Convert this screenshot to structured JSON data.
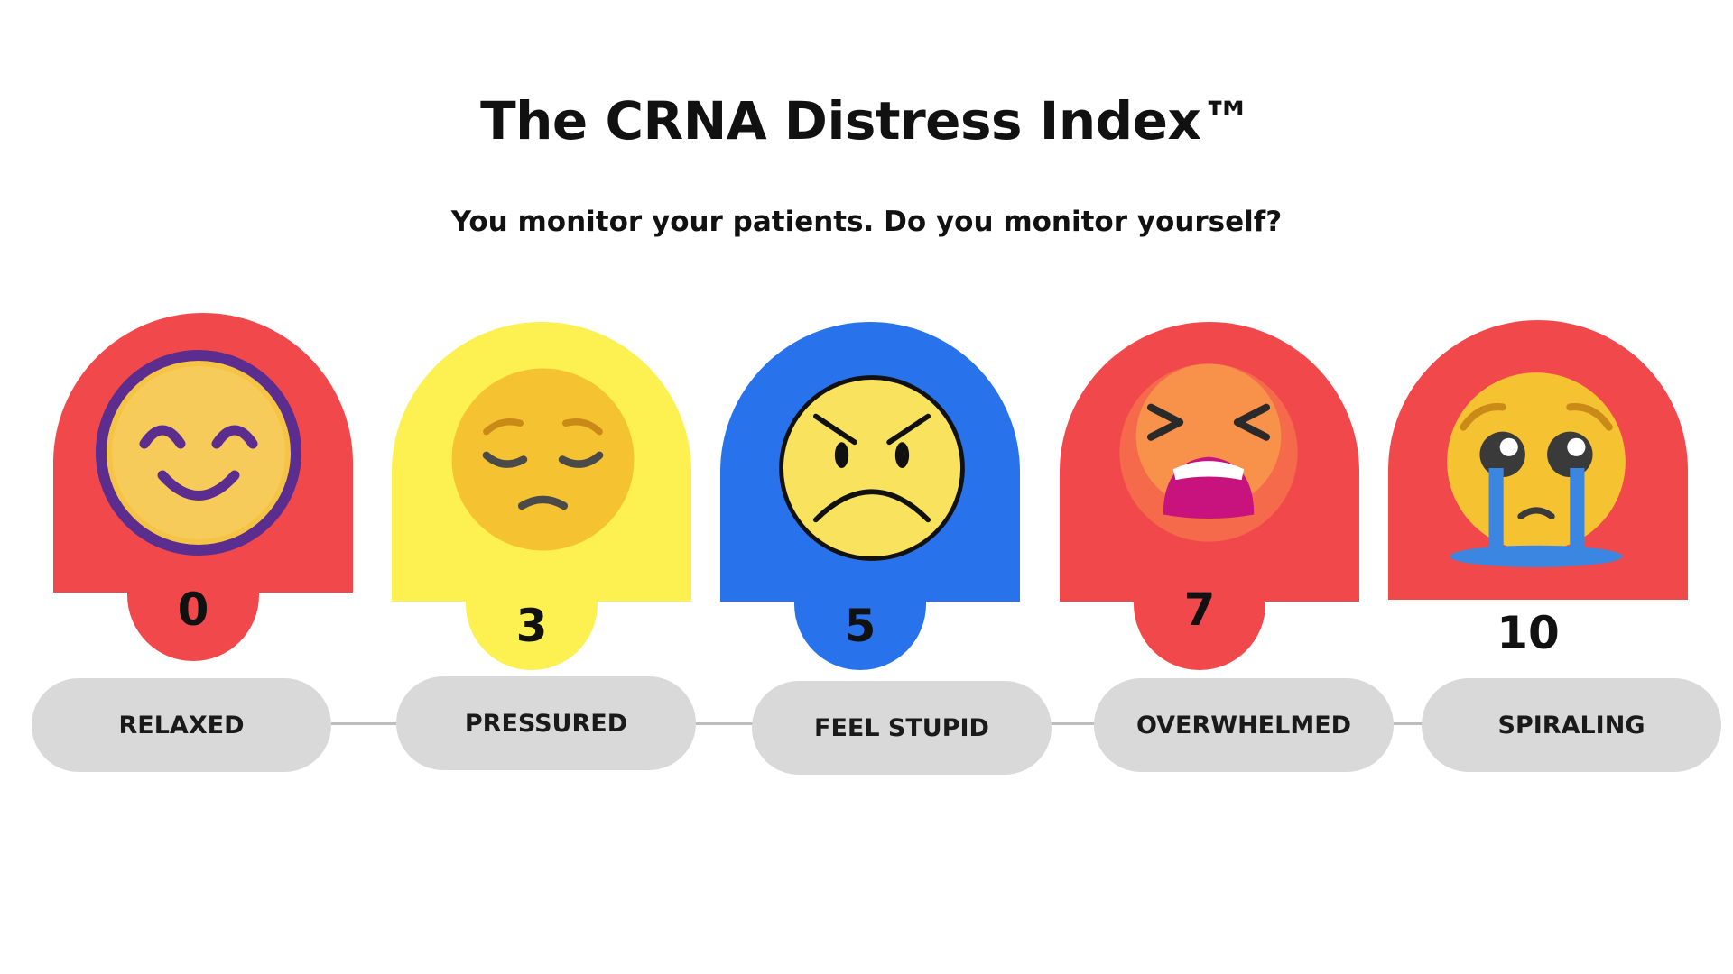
{
  "title": "The CRNA Distress Index™",
  "subtitle": "You monitor your patients. Do you monitor yourself?",
  "levels": [
    {
      "score": "0",
      "label": "RELAXED",
      "color": "#f1494b",
      "icon": "smiling-face-icon"
    },
    {
      "score": "3",
      "label": "PRESSURED",
      "color": "#fdf051",
      "icon": "pensive-face-icon"
    },
    {
      "score": "5",
      "label": "FEEL STUPID",
      "color": "#2872ec",
      "icon": "angry-face-icon"
    },
    {
      "score": "7",
      "label": "OVERWHELMED",
      "color": "#f1494b",
      "icon": "tired-face-icon"
    },
    {
      "score": "10",
      "label": "SPIRALING",
      "color": "#f1494b",
      "icon": "crying-face-icon"
    }
  ],
  "colors": {
    "pill": "#d9d9d9",
    "connector": "#bdbdbd"
  }
}
